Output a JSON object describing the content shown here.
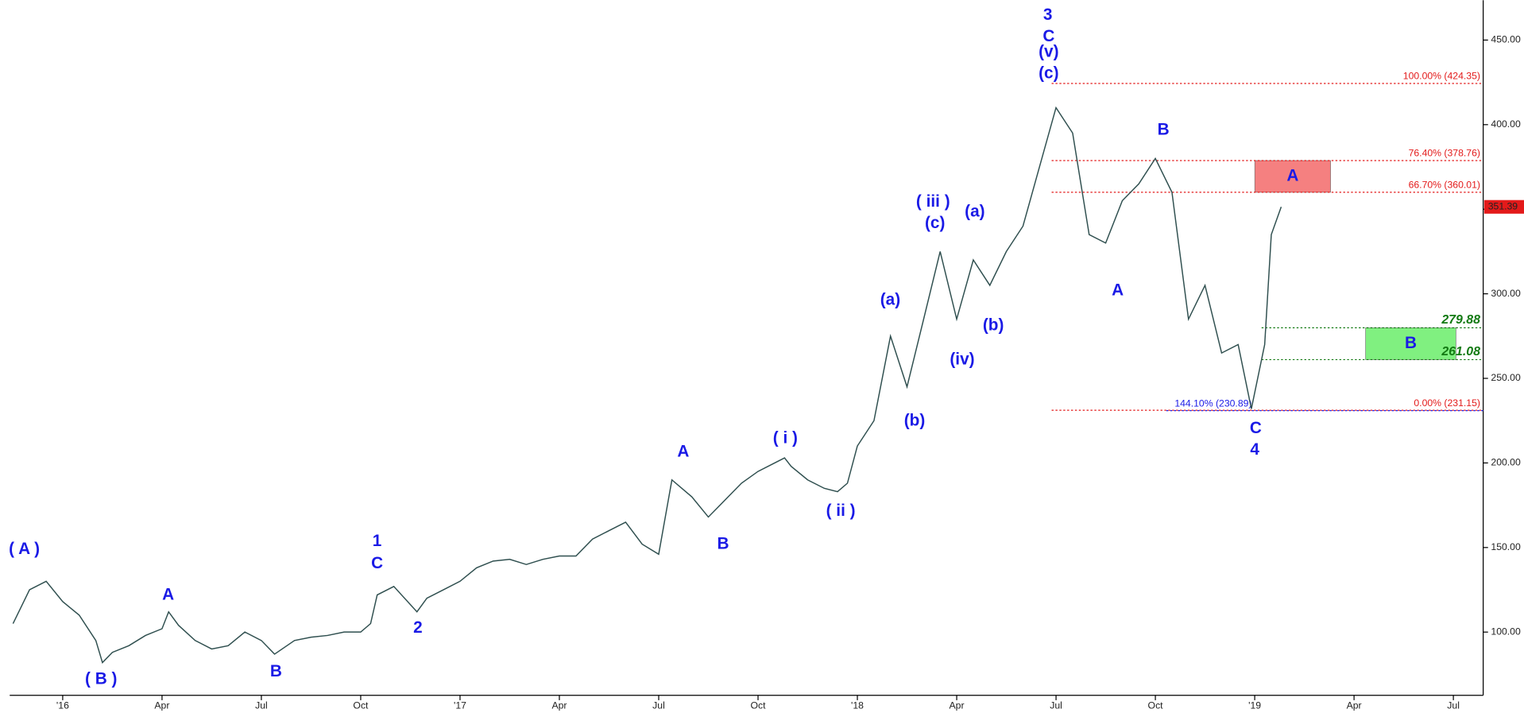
{
  "chart_data": {
    "type": "line",
    "x": [
      -1.5,
      -1,
      -0.5,
      0,
      0.5,
      1,
      1.2,
      1.5,
      2,
      2.5,
      3,
      3.2,
      3.5,
      4,
      4.5,
      5,
      5.5,
      6,
      6.4,
      7,
      7.5,
      8,
      8.5,
      9,
      9.3,
      9.5,
      10,
      10.7,
      11,
      11.5,
      12,
      12.5,
      13,
      13.5,
      14,
      14.5,
      15,
      15.5,
      16,
      16.5,
      17,
      17.5,
      18,
      18.4,
      19,
      19.5,
      20,
      20.5,
      21,
      21.5,
      21.8,
      22,
      22.5,
      23,
      23.4,
      23.7,
      24,
      24.5,
      25,
      25.5,
      26,
      26.5,
      27,
      27.5,
      28,
      28.5,
      29,
      29.5,
      30,
      30.5,
      31,
      31.5,
      32,
      32.5,
      33,
      33.5,
      34,
      34.5,
      35,
      35.5,
      35.9,
      36.3,
      36.5,
      36.8
    ],
    "series": [
      {
        "color": "#2f4f4f",
        "values": [
          105,
          125,
          130,
          118,
          110,
          95,
          82,
          88,
          92,
          98,
          102,
          112,
          104,
          95,
          90,
          92,
          100,
          95,
          87,
          95,
          97,
          98,
          100,
          100,
          105,
          122,
          127,
          112,
          120,
          125,
          130,
          138,
          142,
          143,
          140,
          143,
          145,
          145,
          155,
          160,
          165,
          152,
          146,
          190,
          180,
          168,
          178,
          188,
          195,
          200,
          203,
          198,
          190,
          185,
          183,
          188,
          210,
          225,
          275,
          245,
          285,
          325,
          285,
          320,
          305,
          325,
          340,
          375,
          410,
          395,
          335,
          330,
          355,
          365,
          380,
          360,
          285,
          305,
          265,
          270,
          232,
          270,
          335,
          351.39
        ]
      }
    ],
    "xlim": [
      -1.6,
      42.9
    ],
    "ylim": [
      62.6,
      473.6
    ],
    "xticks": [
      {
        "value": 0,
        "label": "'16"
      },
      {
        "value": 3,
        "label": "Apr"
      },
      {
        "value": 6,
        "label": "Jul"
      },
      {
        "value": 9,
        "label": "Oct"
      },
      {
        "value": 12,
        "label": "'17"
      },
      {
        "value": 15,
        "label": "Apr"
      },
      {
        "value": 18,
        "label": "Jul"
      },
      {
        "value": 21,
        "label": "Oct"
      },
      {
        "value": 24,
        "label": "'18"
      },
      {
        "value": 27,
        "label": "Apr"
      },
      {
        "value": 30,
        "label": "Jul"
      },
      {
        "value": 33,
        "label": "Oct"
      },
      {
        "value": 36,
        "label": "'19"
      },
      {
        "value": 39,
        "label": "Apr"
      },
      {
        "value": 42,
        "label": "Jul"
      }
    ],
    "yticks": [
      {
        "value": 100,
        "label": "100.00"
      },
      {
        "value": 150,
        "label": "150.00"
      },
      {
        "value": 200,
        "label": "200.00"
      },
      {
        "value": 250,
        "label": "250.00"
      },
      {
        "value": 300,
        "label": "300.00"
      },
      {
        "value": 350,
        "label": "350.00"
      },
      {
        "value": 400,
        "label": "400.00"
      },
      {
        "value": 450,
        "label": "450.00"
      }
    ],
    "last_price": 351.39,
    "last_price_color": "#e31a1a",
    "levels": [
      {
        "label": "100.00% (424.35)",
        "value": 424.35,
        "color": "#e31a1a"
      },
      {
        "label": "76.40% (378.76)",
        "value": 378.76,
        "color": "#e31a1a"
      },
      {
        "label": "66.70% (360.01)",
        "value": 360.01,
        "color": "#e31a1a"
      },
      {
        "label": "0.00% (231.15)",
        "value": 231.15,
        "color": "#e31a1a"
      },
      {
        "label": "144.10% (230.89)",
        "value": 230.89,
        "color": "#1a1ae6"
      },
      {
        "value": 279.88,
        "color": "#137a13"
      },
      {
        "value": 261.08,
        "color": "#137a13"
      }
    ],
    "boxes": [
      {
        "label": "A",
        "low": 360.01,
        "high": 378.76,
        "color": "#f58080"
      },
      {
        "label": "B",
        "low": 261.08,
        "high": 279.88,
        "color": "#80f080"
      }
    ],
    "annotations": [
      "( A )",
      "( B )",
      "A",
      "B",
      "1",
      "C",
      "2",
      "A",
      "B",
      "( i )",
      "( ii )",
      "(a)",
      "(b)",
      "( iii )",
      "(c)",
      "(iv)",
      "(a)",
      "(b)",
      "3",
      "C",
      "(v)",
      "(c)",
      "B",
      "A",
      "C",
      "4"
    ]
  }
}
